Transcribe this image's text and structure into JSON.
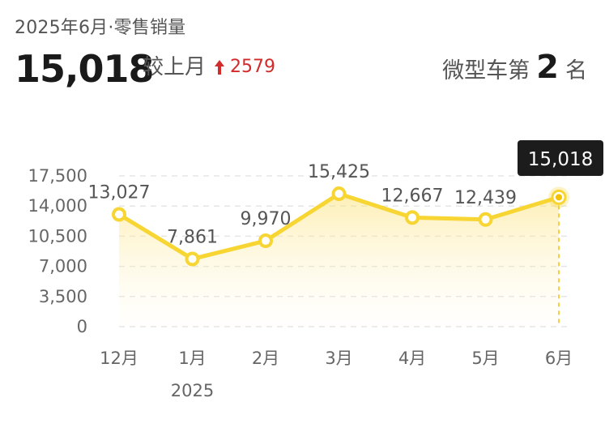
{
  "header": {
    "subtitle": "2025年6月·零售销量",
    "value": "15,018",
    "compare_label": "较上月",
    "compare_value": "2579",
    "rank_label": "微型车第",
    "rank_number": "2",
    "rank_suffix": "名"
  },
  "colors": {
    "accent": "#f7d532",
    "accent_dark": "#f2c200",
    "up": "#d12b2b",
    "text": "#1a1a1a",
    "muted": "#666666",
    "tooltip_bg": "#1c1c1c",
    "grid": "#e5e5e5"
  },
  "chart_data": {
    "type": "area",
    "categories": [
      "12月",
      "1月",
      "2月",
      "3月",
      "4月",
      "5月",
      "6月"
    ],
    "year_label": "2025",
    "values": [
      13027,
      7861,
      9970,
      15425,
      12667,
      12439,
      15018
    ],
    "data_labels": [
      "13,027",
      "7,861",
      "9,970",
      "15,425",
      "12,667",
      "12,439",
      ""
    ],
    "highlight_label": "15,018",
    "highlight_index": 6,
    "yticks": [
      "17,500",
      "14,000",
      "10,500",
      "7,000",
      "3,500",
      "0"
    ],
    "ytick_values": [
      17500,
      14000,
      10500,
      7000,
      3500,
      0
    ],
    "ylim": [
      0,
      17500
    ],
    "grid": true
  }
}
